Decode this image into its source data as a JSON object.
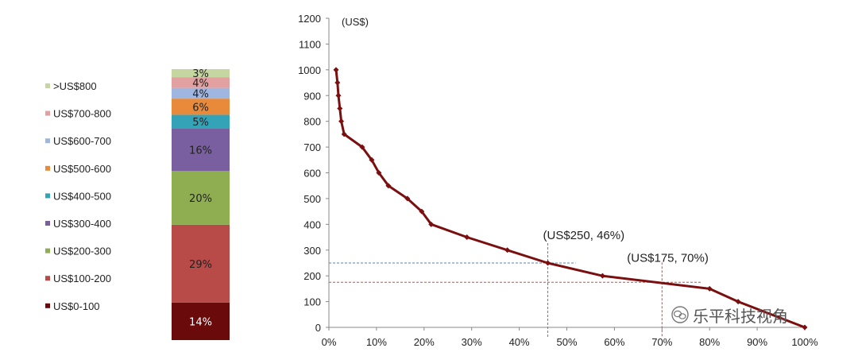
{
  "chart_data": [
    {
      "type": "bar",
      "stacked": true,
      "legend_position": "left",
      "segments": [
        {
          "name": "US$0-100",
          "value": 14,
          "label": "14%",
          "color": "#6b0a0a"
        },
        {
          "name": "US$100-200",
          "value": 29,
          "label": "29%",
          "color": "#b84a48"
        },
        {
          "name": "US$200-300",
          "value": 20,
          "label": "20%",
          "color": "#8fae52"
        },
        {
          "name": "US$300-400",
          "value": 16,
          "label": "16%",
          "color": "#7a5fa0"
        },
        {
          "name": "US$400-500",
          "value": 5,
          "label": "5%",
          "color": "#34a3b8"
        },
        {
          "name": "US$500-600",
          "value": 6,
          "label": "6%",
          "color": "#e88a3a"
        },
        {
          "name": "US$600-700",
          "value": 4,
          "label": "4%",
          "color": "#9fb6e0"
        },
        {
          "name": "US$700-800",
          "value": 4,
          "label": "4%",
          "color": "#e3a0a0"
        },
        {
          "name": ">US$800",
          "value": 3,
          "label": "3%",
          "color": "#c5d6a0"
        }
      ]
    },
    {
      "type": "line",
      "ylabel": "(US$)",
      "ylim": [
        0,
        1200
      ],
      "xlim": [
        0,
        100
      ],
      "yticks": [
        "0",
        "100",
        "200",
        "300",
        "400",
        "500",
        "600",
        "700",
        "800",
        "900",
        "1000",
        "1100",
        "1200"
      ],
      "xticks": [
        "0%",
        "10%",
        "20%",
        "30%",
        "40%",
        "50%",
        "60%",
        "70%",
        "80%",
        "90%",
        "100%"
      ],
      "grid": false,
      "series_color": "#7b0f0f",
      "points": [
        {
          "x": 1.5,
          "y": 1000
        },
        {
          "x": 1.8,
          "y": 950
        },
        {
          "x": 2.0,
          "y": 900
        },
        {
          "x": 2.3,
          "y": 850
        },
        {
          "x": 2.6,
          "y": 800
        },
        {
          "x": 3.2,
          "y": 750
        },
        {
          "x": 7.0,
          "y": 700
        },
        {
          "x": 9.0,
          "y": 650
        },
        {
          "x": 10.5,
          "y": 600
        },
        {
          "x": 12.5,
          "y": 550
        },
        {
          "x": 16.5,
          "y": 500
        },
        {
          "x": 19.5,
          "y": 450
        },
        {
          "x": 21.5,
          "y": 400
        },
        {
          "x": 29.0,
          "y": 350
        },
        {
          "x": 37.5,
          "y": 300
        },
        {
          "x": 46.0,
          "y": 250
        },
        {
          "x": 57.5,
          "y": 200
        },
        {
          "x": 80.0,
          "y": 150
        },
        {
          "x": 86.0,
          "y": 100
        },
        {
          "x": 100.0,
          "y": 0
        }
      ],
      "annotations": [
        {
          "text": "(US$250, 46%)",
          "x": 46,
          "y": 250,
          "color": "#5a7fb0"
        },
        {
          "text": "(US$175, 70%)",
          "x": 70,
          "y": 175,
          "color": "#c0504d"
        }
      ]
    }
  ],
  "watermark": {
    "text": "乐平科技视角",
    "icon": "wechat-logo-icon"
  }
}
